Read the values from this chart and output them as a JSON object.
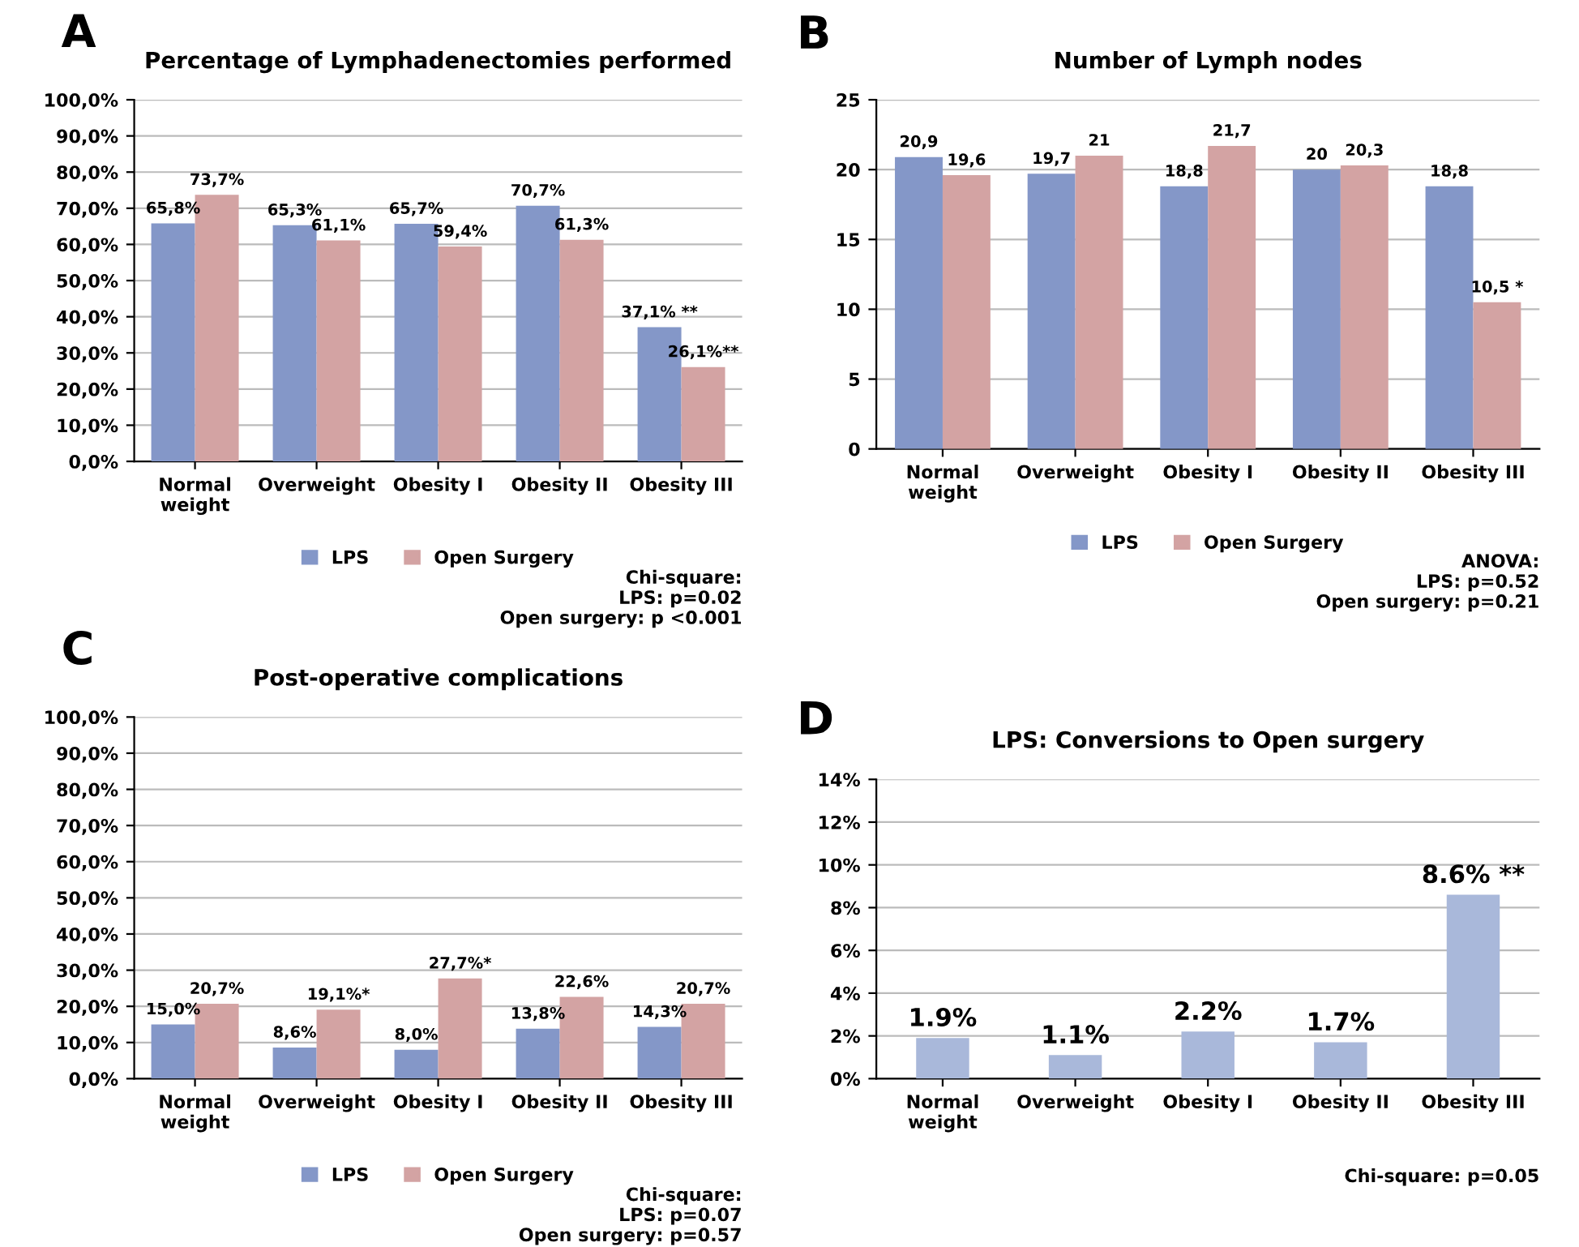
{
  "chart_data": [
    {
      "type": "bar",
      "title": "Percentage of Lymphadenectomies performed",
      "categories": [
        "Normal\nweight",
        "Overweight",
        "Obesity I",
        "Obesity II",
        "Obesity III"
      ],
      "series": [
        {
          "name": "LPS",
          "color": "#8497c8",
          "values": [
            65.8,
            65.3,
            65.7,
            70.7,
            37.1
          ],
          "value_labels": [
            "65,8%",
            "65,3%",
            "65,7%",
            "70,7%",
            "37,1% **"
          ]
        },
        {
          "name": "Open Surgery",
          "color": "#d3a3a3",
          "values": [
            73.7,
            61.1,
            59.4,
            61.3,
            26.1
          ],
          "value_labels": [
            "73,7%",
            "61,1%",
            "59,4%",
            "61,3%",
            "26,1%**"
          ]
        }
      ],
      "ylim": [
        0,
        100
      ],
      "yticks": [
        {
          "value": 0,
          "label": "0,0%"
        },
        {
          "value": 10,
          "label": "10,0%"
        },
        {
          "value": 20,
          "label": "20,0%"
        },
        {
          "value": 30,
          "label": "30,0%"
        },
        {
          "value": 40,
          "label": "40,0%"
        },
        {
          "value": 50,
          "label": "50,0%"
        },
        {
          "value": 60,
          "label": "60,0%"
        },
        {
          "value": 70,
          "label": "70,0%"
        },
        {
          "value": 80,
          "label": "80,0%"
        },
        {
          "value": 90,
          "label": "90,0%"
        },
        {
          "value": 100,
          "label": "100,0%"
        }
      ],
      "grid": "y",
      "legend": "bottom",
      "annotations": [
        "A",
        "Chi-square:\nLPS: p=0.02\nOpen surgery: p <0.001"
      ]
    },
    {
      "type": "bar",
      "title": "Number of Lymph nodes",
      "categories": [
        "Normal\nweight",
        "Overweight",
        "Obesity I",
        "Obesity II",
        "Obesity III"
      ],
      "series": [
        {
          "name": "LPS",
          "color": "#8497c8",
          "values": [
            20.9,
            19.7,
            18.8,
            20,
            18.8
          ],
          "value_labels": [
            "20,9",
            "19,7",
            "18,8",
            "20",
            "18,8"
          ]
        },
        {
          "name": "Open Surgery",
          "color": "#d3a3a3",
          "values": [
            19.6,
            21,
            21.7,
            20.3,
            10.5
          ],
          "value_labels": [
            "19,6",
            "21",
            "21,7",
            "20,3",
            "10,5 *"
          ]
        }
      ],
      "ylim": [
        0,
        25
      ],
      "yticks": [
        0,
        5,
        10,
        15,
        20,
        25
      ],
      "grid": "y",
      "legend": "bottom",
      "annotations": [
        "B",
        "ANOVA:\nLPS: p=0.52\nOpen surgery: p=0.21"
      ]
    },
    {
      "type": "bar",
      "title": "Post-operative complications",
      "categories": [
        "Normal\nweight",
        "Overweight",
        "Obesity I",
        "Obesity II",
        "Obesity III"
      ],
      "series": [
        {
          "name": "LPS",
          "color": "#8497c8",
          "values": [
            15.0,
            8.6,
            8.0,
            13.8,
            14.3
          ],
          "value_labels": [
            "15,0%",
            "8,6%",
            "8,0%",
            "13,8%",
            "14,3%"
          ]
        },
        {
          "name": "Open Surgery",
          "color": "#d3a3a3",
          "values": [
            20.7,
            19.1,
            27.7,
            22.6,
            20.7
          ],
          "value_labels": [
            "20,7%",
            "19,1%*",
            "27,7%*",
            "22,6%",
            "20,7%"
          ]
        }
      ],
      "ylim": [
        0,
        100
      ],
      "yticks": [
        {
          "value": 0,
          "label": "0,0%"
        },
        {
          "value": 10,
          "label": "10,0%"
        },
        {
          "value": 20,
          "label": "20,0%"
        },
        {
          "value": 30,
          "label": "30,0%"
        },
        {
          "value": 40,
          "label": "40,0%"
        },
        {
          "value": 50,
          "label": "50,0%"
        },
        {
          "value": 60,
          "label": "60,0%"
        },
        {
          "value": 70,
          "label": "70,0%"
        },
        {
          "value": 80,
          "label": "80,0%"
        },
        {
          "value": 90,
          "label": "90,0%"
        },
        {
          "value": 100,
          "label": "100,0%"
        }
      ],
      "grid": "y",
      "legend": "bottom",
      "annotations": [
        "C",
        "Chi-square:\nLPS: p=0.07\nOpen surgery: p=0.57"
      ]
    },
    {
      "type": "bar",
      "title": "LPS: Conversions to Open surgery",
      "categories": [
        "Normal\nweight",
        "Overweight",
        "Obesity I",
        "Obesity II",
        "Obesity III"
      ],
      "series": [
        {
          "color": "#a9b8da",
          "values": [
            1.9,
            1.1,
            2.2,
            1.7,
            8.6
          ],
          "value_labels": [
            "1.9%",
            "1.1%",
            "2.2%",
            "1.7%",
            "8.6% **"
          ]
        }
      ],
      "ylim": [
        0,
        14
      ],
      "yticks": [
        {
          "value": 0,
          "label": "0%"
        },
        {
          "value": 2,
          "label": "2%"
        },
        {
          "value": 4,
          "label": "4%"
        },
        {
          "value": 6,
          "label": "6%"
        },
        {
          "value": 8,
          "label": "8%"
        },
        {
          "value": 10,
          "label": "10%"
        },
        {
          "value": 12,
          "label": "12%"
        },
        {
          "value": 14,
          "label": "14%"
        }
      ],
      "grid": "y",
      "annotations": [
        "D",
        "Chi-square: p=0.05"
      ]
    }
  ]
}
